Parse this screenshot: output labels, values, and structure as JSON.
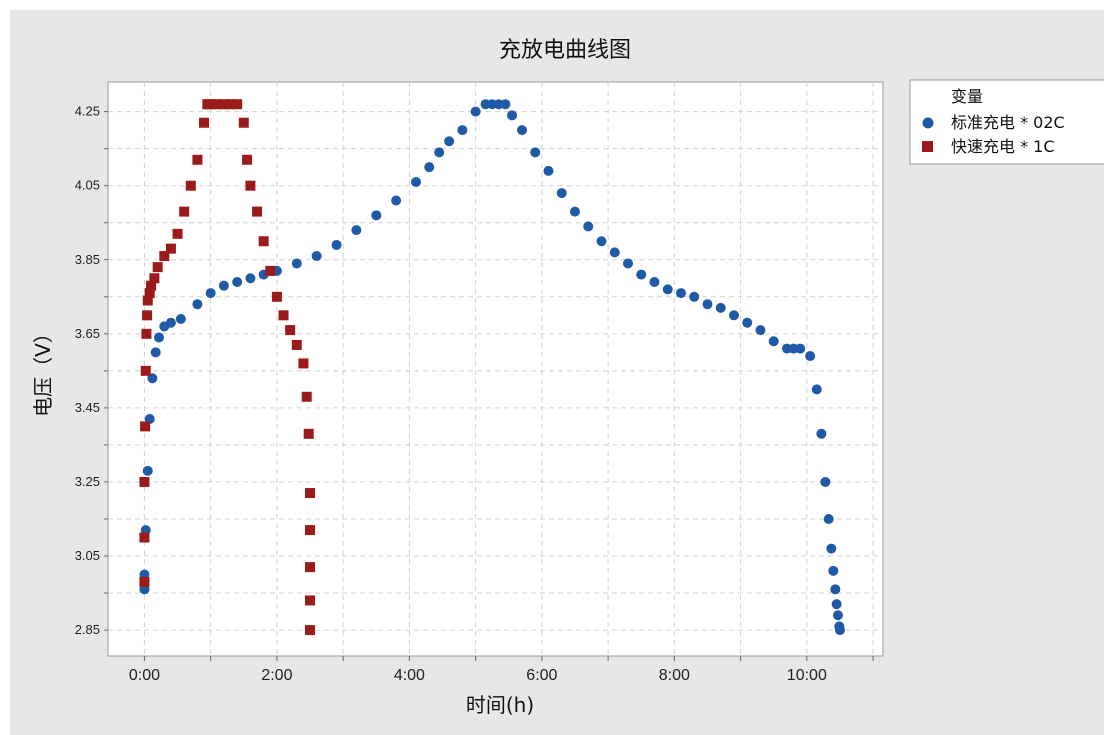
{
  "chart_data": {
    "type": "scatter",
    "title": "充放电曲线图",
    "xlabel": "时间(h)",
    "ylabel": "电压（V）",
    "xlim": [
      -0.55,
      11.15
    ],
    "ylim": [
      2.78,
      4.33
    ],
    "x_ticks": [
      0,
      2,
      4,
      6,
      8,
      10
    ],
    "x_tick_labels": [
      "0:00",
      "2:00",
      "4:00",
      "6:00",
      "8:00",
      "10:00"
    ],
    "y_ticks": [
      2.85,
      3.05,
      3.25,
      3.45,
      3.65,
      3.85,
      4.05,
      4.25
    ],
    "y_tick_labels": [
      "2.85",
      "3.05",
      "3.25",
      "3.45",
      "3.65",
      "3.85",
      "4.05",
      "4.25"
    ],
    "grid": true,
    "legend": {
      "title": "变量",
      "position": "right"
    },
    "series": [
      {
        "name": "标准充电 * 02C",
        "color": "#1f5aa6",
        "marker": "circle",
        "x": [
          0.0,
          0.0,
          0.02,
          0.05,
          0.08,
          0.12,
          0.17,
          0.22,
          0.3,
          0.4,
          0.55,
          0.8,
          1.0,
          1.2,
          1.4,
          1.6,
          1.8,
          2.0,
          2.3,
          2.6,
          2.9,
          3.2,
          3.5,
          3.8,
          4.1,
          4.3,
          4.45,
          4.6,
          4.8,
          5.0,
          5.15,
          5.25,
          5.35,
          5.45,
          5.55,
          5.7,
          5.9,
          6.1,
          6.3,
          6.5,
          6.7,
          6.9,
          7.1,
          7.3,
          7.5,
          7.7,
          7.9,
          8.1,
          8.3,
          8.5,
          8.7,
          8.9,
          9.1,
          9.3,
          9.5,
          9.7,
          9.8,
          9.9,
          10.05,
          10.15,
          10.22,
          10.28,
          10.33,
          10.37,
          10.4,
          10.43,
          10.45,
          10.47,
          10.49,
          10.5
        ],
        "y": [
          2.96,
          3.0,
          3.12,
          3.28,
          3.42,
          3.53,
          3.6,
          3.64,
          3.67,
          3.68,
          3.69,
          3.73,
          3.76,
          3.78,
          3.79,
          3.8,
          3.81,
          3.82,
          3.84,
          3.86,
          3.89,
          3.93,
          3.97,
          4.01,
          4.06,
          4.1,
          4.14,
          4.17,
          4.2,
          4.25,
          4.27,
          4.27,
          4.27,
          4.27,
          4.24,
          4.2,
          4.14,
          4.09,
          4.03,
          3.98,
          3.94,
          3.9,
          3.87,
          3.84,
          3.81,
          3.79,
          3.77,
          3.76,
          3.75,
          3.73,
          3.72,
          3.7,
          3.68,
          3.66,
          3.63,
          3.61,
          3.61,
          3.61,
          3.59,
          3.5,
          3.38,
          3.25,
          3.15,
          3.07,
          3.01,
          2.96,
          2.92,
          2.89,
          2.86,
          2.85
        ]
      },
      {
        "name": "快速充电 * 1C",
        "color": "#9b1b1b",
        "marker": "square",
        "x": [
          0.0,
          0.0,
          0.0,
          0.01,
          0.02,
          0.03,
          0.04,
          0.05,
          0.08,
          0.1,
          0.15,
          0.2,
          0.3,
          0.4,
          0.5,
          0.6,
          0.7,
          0.8,
          0.9,
          0.95,
          1.0,
          1.1,
          1.2,
          1.3,
          1.4,
          1.5,
          1.55,
          1.6,
          1.7,
          1.8,
          1.9,
          2.0,
          2.1,
          2.2,
          2.3,
          2.4,
          2.45,
          2.48,
          2.5,
          2.5,
          2.5,
          2.5,
          2.5
        ],
        "y": [
          2.98,
          3.1,
          3.25,
          3.4,
          3.55,
          3.65,
          3.7,
          3.74,
          3.76,
          3.78,
          3.8,
          3.83,
          3.86,
          3.88,
          3.92,
          3.98,
          4.05,
          4.12,
          4.22,
          4.27,
          4.27,
          4.27,
          4.27,
          4.27,
          4.27,
          4.22,
          4.12,
          4.05,
          3.98,
          3.9,
          3.82,
          3.75,
          3.7,
          3.66,
          3.62,
          3.57,
          3.48,
          3.38,
          3.22,
          3.12,
          3.02,
          2.93,
          2.85
        ]
      }
    ]
  }
}
